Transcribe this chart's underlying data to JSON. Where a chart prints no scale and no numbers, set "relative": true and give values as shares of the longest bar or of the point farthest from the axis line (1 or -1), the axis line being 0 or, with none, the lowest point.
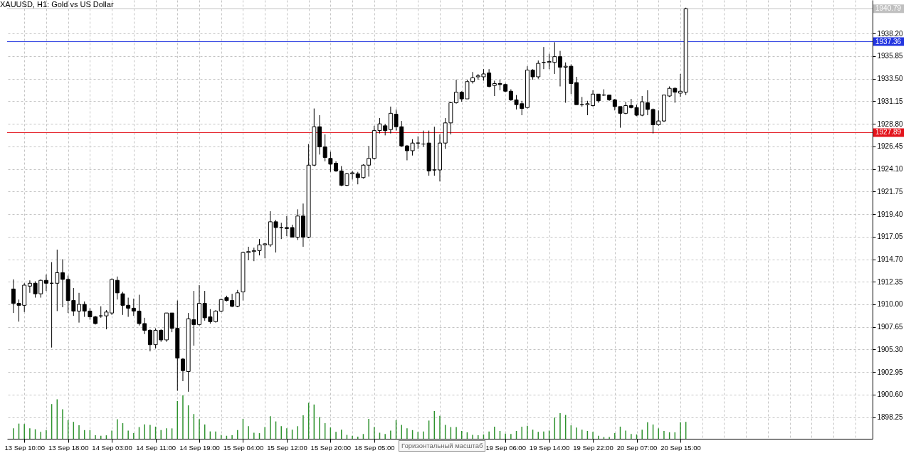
{
  "chart_data": [
    {
      "type": "candlestick",
      "title": "XAUUSD, H1: Gold vs US Dollar",
      "color": "#000000",
      "grid": true,
      "categories": [
        null,
        null,
        "13 Sep 10:00",
        null,
        null,
        null,
        null,
        null,
        null,
        null,
        "13 Sep 18:00",
        null,
        null,
        null,
        null,
        null,
        null,
        null,
        "14 Sep 03:00",
        null,
        null,
        null,
        null,
        null,
        null,
        null,
        "14 Sep 11:00",
        null,
        null,
        null,
        null,
        null,
        null,
        null,
        "14 Sep 19:00",
        null,
        null,
        null,
        null,
        null,
        null,
        null,
        "15 Sep 04:00",
        null,
        null,
        null,
        null,
        null,
        null,
        null,
        "15 Sep 12:00",
        null,
        null,
        null,
        null,
        null,
        null,
        null,
        "15 Sep 20:00",
        null,
        null,
        null,
        null,
        null,
        null,
        null,
        "18 Sep 05:00",
        null,
        null,
        null,
        null,
        null,
        null,
        null,
        null,
        null,
        null,
        null,
        null,
        null,
        null,
        null,
        null,
        null,
        null,
        null,
        null,
        null,
        null,
        null,
        "19 Sep 06:00",
        null,
        null,
        null,
        null,
        null,
        null,
        null,
        "19 Sep 14:00",
        null,
        null,
        null,
        null,
        null,
        null,
        null,
        "19 Sep 22:00",
        null,
        null,
        null,
        null,
        null,
        null,
        null,
        "20 Sep 07:00",
        null,
        null,
        null,
        null,
        null,
        null,
        null,
        "20 Sep 15:00",
        null,
        null,
        null,
        null,
        null,
        null,
        null,
        null,
        null,
        null,
        null,
        null,
        null,
        null,
        null,
        null,
        null,
        null,
        null,
        null,
        null,
        null,
        null,
        null,
        null,
        null,
        null,
        null,
        null,
        null,
        null,
        null,
        null,
        null
      ],
      "ohlc": [
        [
          1911.6,
          1912.6,
          1909.1,
          1910.1
        ],
        [
          1910.1,
          1910.5,
          1908.2,
          1909.9
        ],
        [
          1909.9,
          1912.2,
          1909.2,
          1912.0
        ],
        [
          1911.9,
          1912.5,
          1911.2,
          1912.2
        ],
        [
          1912.2,
          1912.4,
          1910.7,
          1911.1
        ],
        [
          1911.1,
          1912.6,
          1910.7,
          1912.5
        ],
        [
          1912.5,
          1913.1,
          1911.4,
          1912.2
        ],
        [
          1912.2,
          1914.4,
          1905.5,
          1912.2
        ],
        [
          1912.2,
          1915.7,
          1909.3,
          1913.3
        ],
        [
          1913.3,
          1914.7,
          1909.7,
          1912.6
        ],
        [
          1912.6,
          1913.0,
          1909.1,
          1910.4
        ],
        [
          1910.4,
          1911.7,
          1908.8,
          1909.3
        ],
        [
          1909.3,
          1911.2,
          1908.1,
          1910.0
        ],
        [
          1910.0,
          1910.3,
          1908.7,
          1909.3
        ],
        [
          1909.3,
          1909.6,
          1908.4,
          1908.7
        ],
        [
          1908.7,
          1908.8,
          1907.9,
          1908.0
        ],
        [
          1908.8,
          1909.8,
          1908.6,
          1908.8
        ],
        [
          1908.8,
          1909.4,
          1907.4,
          1909.2
        ],
        [
          1909.1,
          1912.7,
          1908.9,
          1912.6
        ],
        [
          1912.5,
          1912.9,
          1910.5,
          1911.2
        ],
        [
          1911.1,
          1911.3,
          1908.9,
          1909.9
        ],
        [
          1909.9,
          1910.7,
          1908.7,
          1909.6
        ],
        [
          1909.6,
          1910.6,
          1908.8,
          1909.3
        ],
        [
          1909.3,
          1911.0,
          1907.8,
          1908.0
        ],
        [
          1908.0,
          1908.6,
          1906.9,
          1907.3
        ],
        [
          1907.3,
          1907.4,
          1905.1,
          1905.8
        ],
        [
          1905.8,
          1907.5,
          1905.4,
          1907.3
        ],
        [
          1907.3,
          1907.4,
          1906.1,
          1906.3
        ],
        [
          1906.3,
          1909.1,
          1906.1,
          1909.1
        ],
        [
          1909.1,
          1909.1,
          1907.1,
          1907.5
        ],
        [
          1907.5,
          1910.4,
          1901.0,
          1904.4
        ],
        [
          1904.3,
          1904.4,
          1902.0,
          1903.1
        ],
        [
          1903.0,
          1909.1,
          1900.9,
          1908.5
        ],
        [
          1908.4,
          1911.4,
          1905.7,
          1907.9
        ],
        [
          1907.9,
          1912.0,
          1907.8,
          1910.1
        ],
        [
          1910.1,
          1911.4,
          1908.3,
          1908.6
        ],
        [
          1908.7,
          1909.5,
          1908.0,
          1908.2
        ],
        [
          1908.2,
          1909.4,
          1908.1,
          1909.3
        ],
        [
          1909.3,
          1910.6,
          1909.2,
          1910.5
        ],
        [
          1910.7,
          1910.9,
          1910.3,
          1910.4
        ],
        [
          1910.4,
          1911.1,
          1909.7,
          1909.8
        ],
        [
          1909.8,
          1911.5,
          1909.7,
          1911.2
        ],
        [
          1911.3,
          1915.5,
          1910.4,
          1915.4
        ],
        [
          1915.4,
          1916.0,
          1914.6,
          1915.5
        ],
        [
          1915.5,
          1915.9,
          1914.5,
          1915.6
        ],
        [
          1915.6,
          1916.8,
          1915.1,
          1916.2
        ],
        [
          1916.2,
          1916.4,
          1914.8,
          1916.3
        ],
        [
          1916.2,
          1919.7,
          1916.0,
          1918.6
        ],
        [
          1918.6,
          1918.8,
          1915.4,
          1918.0
        ],
        [
          1918.0,
          1918.5,
          1916.8,
          1918.0
        ],
        [
          1918.0,
          1919.2,
          1917.1,
          1917.9
        ],
        [
          1918.0,
          1918.3,
          1917.0,
          1917.0
        ],
        [
          1917.0,
          1919.9,
          1916.7,
          1919.2
        ],
        [
          1919.2,
          1920.5,
          1916.0,
          1917.0
        ],
        [
          1917.0,
          1926.7,
          1916.9,
          1924.5
        ],
        [
          1924.5,
          1930.4,
          1924.4,
          1928.5
        ],
        [
          1928.5,
          1929.7,
          1925.6,
          1926.4
        ],
        [
          1926.4,
          1927.7,
          1924.9,
          1925.3
        ],
        [
          1925.2,
          1925.9,
          1923.8,
          1924.6
        ],
        [
          1924.7,
          1924.9,
          1923.8,
          1923.9
        ],
        [
          1923.9,
          1924.4,
          1922.3,
          1922.4
        ],
        [
          1922.4,
          1923.7,
          1922.3,
          1923.6
        ],
        [
          1923.6,
          1923.9,
          1923.0,
          1923.7
        ],
        [
          1923.6,
          1923.8,
          1922.5,
          1923.2
        ],
        [
          1923.2,
          1924.6,
          1923.1,
          1924.5
        ],
        [
          1924.5,
          1926.5,
          1923.3,
          1925.2
        ],
        [
          1925.2,
          1928.6,
          1925.1,
          1928.1
        ],
        [
          1928.1,
          1929.4,
          1927.8,
          1928.8
        ],
        [
          1928.6,
          1928.8,
          1927.6,
          1928.1
        ],
        [
          1928.2,
          1930.6,
          1927.8,
          1929.9
        ],
        [
          1929.8,
          1930.3,
          1928.1,
          1928.5
        ],
        [
          1928.5,
          1929.1,
          1926.4,
          1926.5
        ],
        [
          1926.5,
          1926.6,
          1925.0,
          1926.0
        ],
        [
          1926.0,
          1927.2,
          1925.5,
          1926.8
        ],
        [
          1926.8,
          1927.5,
          1926.2,
          1926.8
        ],
        [
          1926.7,
          1928.1,
          1926.4,
          1926.7
        ],
        [
          1926.8,
          1928.1,
          1923.4,
          1923.9
        ],
        [
          1924.0,
          1928.5,
          1923.4,
          1924.0
        ],
        [
          1924.0,
          1927.7,
          1922.8,
          1926.8
        ],
        [
          1926.8,
          1929.4,
          1926.2,
          1928.9
        ],
        [
          1928.9,
          1931.1,
          1927.7,
          1931.0
        ],
        [
          1931.0,
          1933.4,
          1930.9,
          1932.1
        ],
        [
          1932.1,
          1932.2,
          1931.1,
          1931.4
        ],
        [
          1931.4,
          1933.4,
          1931.4,
          1933.2
        ],
        [
          1933.2,
          1934.2,
          1933.0,
          1933.6
        ],
        [
          1933.7,
          1934.0,
          1933.4,
          1933.8
        ],
        [
          1933.7,
          1934.5,
          1933.3,
          1934.0
        ],
        [
          1934.1,
          1934.5,
          1932.6,
          1932.7
        ],
        [
          1932.8,
          1933.3,
          1931.7,
          1933.0
        ],
        [
          1933.0,
          1933.4,
          1932.3,
          1932.9
        ],
        [
          1932.9,
          1933.0,
          1932.1,
          1932.2
        ],
        [
          1932.2,
          1932.4,
          1931.2,
          1931.3
        ],
        [
          1931.3,
          1931.8,
          1930.3,
          1930.8
        ],
        [
          1930.9,
          1931.2,
          1929.7,
          1930.4
        ],
        [
          1930.5,
          1934.8,
          1930.4,
          1934.4
        ],
        [
          1934.4,
          1934.5,
          1933.4,
          1933.7
        ],
        [
          1933.7,
          1935.4,
          1933.5,
          1935.1
        ],
        [
          1935.2,
          1936.8,
          1934.5,
          1935.2
        ],
        [
          1935.2,
          1936.1,
          1934.5,
          1935.3
        ],
        [
          1935.2,
          1937.3,
          1934.0,
          1935.8
        ],
        [
          1935.8,
          1936.4,
          1932.7,
          1934.7
        ],
        [
          1934.7,
          1935.2,
          1931.0,
          1934.8
        ],
        [
          1934.8,
          1935.0,
          1931.9,
          1933.0
        ],
        [
          1933.1,
          1933.7,
          1930.8,
          1930.8
        ],
        [
          1930.8,
          1931.6,
          1930.6,
          1930.8
        ],
        [
          1930.8,
          1931.2,
          1929.7,
          1930.9
        ],
        [
          1930.7,
          1932.3,
          1930.6,
          1931.9
        ],
        [
          1931.9,
          1931.9,
          1931.0,
          1931.2
        ],
        [
          1931.8,
          1932.4,
          1931.7,
          1931.8
        ],
        [
          1931.8,
          1931.8,
          1931.2,
          1931.3
        ],
        [
          1931.3,
          1931.4,
          1930.2,
          1930.6
        ],
        [
          1930.6,
          1930.6,
          1928.4,
          1929.9
        ],
        [
          1929.9,
          1931.1,
          1929.8,
          1930.7
        ],
        [
          1930.7,
          1931.4,
          1930.4,
          1930.5
        ],
        [
          1930.5,
          1930.8,
          1929.6,
          1929.7
        ],
        [
          1929.7,
          1931.7,
          1929.6,
          1931.1
        ],
        [
          1931.0,
          1932.3,
          1929.7,
          1930.3
        ],
        [
          1930.3,
          1930.4,
          1927.8,
          1928.7
        ],
        [
          1928.7,
          1930.2,
          1928.6,
          1929.1
        ],
        [
          1929.1,
          1931.8,
          1929.0,
          1931.8
        ],
        [
          1931.7,
          1932.7,
          1931.6,
          1932.5
        ],
        [
          1932.5,
          1932.6,
          1931.0,
          1932.1
        ],
        [
          1932.0,
          1934.0,
          1931.6,
          1932.2
        ],
        [
          1932.1,
          1940.9,
          1931.8,
          1940.79
        ],
        null,
        null,
        null,
        null,
        null,
        null,
        null,
        null,
        null,
        null,
        null,
        null,
        null,
        null,
        null,
        null,
        null,
        null,
        null,
        null,
        null,
        null,
        null,
        null,
        null,
        null,
        null,
        null,
        null,
        null,
        null,
        null,
        null
      ],
      "ylim": [
        1896.0,
        1941.7
      ],
      "yticks": [
        {
          "value": 1898.25,
          "label": "1898.25"
        },
        {
          "value": 1900.6,
          "label": "1900.60"
        },
        {
          "value": 1902.95,
          "label": "1902.95"
        },
        {
          "value": 1905.3,
          "label": "1905.30"
        },
        {
          "value": 1907.65,
          "label": "1907.65"
        },
        {
          "value": 1910,
          "label": "1910.00"
        },
        {
          "value": 1912.35,
          "label": "1912.35"
        },
        {
          "value": 1914.7,
          "label": "1914.70"
        },
        {
          "value": 1917.05,
          "label": "1917.05"
        },
        {
          "value": 1919.4,
          "label": "1919.40"
        },
        {
          "value": 1921.75,
          "label": "1921.75"
        },
        {
          "value": 1924.1,
          "label": "1924.10"
        },
        {
          "value": 1926.45,
          "label": "1926.45"
        },
        {
          "value": 1928.8,
          "label": "1928.80"
        },
        {
          "value": 1931.15,
          "label": "1931.15"
        },
        {
          "value": 1933.5,
          "label": "1933.50"
        },
        {
          "value": 1935.85,
          "label": "1935.85"
        },
        {
          "value": 1938.2,
          "label": "1938.20"
        }
      ],
      "ref_lines": [
        {
          "axis": "y",
          "value": 1940.79,
          "label": "1940.79",
          "color": "#c0c0c0"
        },
        {
          "axis": "y",
          "value": 1937.36,
          "label": "1937.36",
          "color": "#2436e0"
        },
        {
          "axis": "y",
          "value": 1927.89,
          "label": "1927.89",
          "color": "#e3141c"
        }
      ],
      "annotations": [
        "Горизонтальный масштаб"
      ]
    },
    {
      "type": "bar",
      "relative": true,
      "color": "#2e922e",
      "categories": [
        null,
        null,
        null,
        null,
        null,
        null,
        null,
        null,
        null,
        null,
        null,
        null,
        null,
        null,
        null,
        null,
        null,
        null,
        null,
        null,
        null,
        null,
        null,
        null,
        null,
        null,
        null,
        null,
        null,
        null,
        null,
        null,
        null,
        null,
        null,
        null,
        null,
        null,
        null,
        null,
        null,
        null,
        null,
        null,
        null,
        null,
        null,
        null,
        null,
        null,
        null,
        null,
        null,
        null,
        null,
        null,
        null,
        null,
        null,
        null,
        null,
        null,
        null,
        null,
        null,
        null,
        null,
        null,
        null,
        null,
        null,
        null,
        null,
        null,
        null,
        null,
        null,
        null,
        null,
        null,
        null,
        null,
        null,
        null,
        null,
        null,
        null,
        null,
        null,
        null,
        null,
        null,
        null,
        null,
        null,
        null,
        null,
        null,
        null,
        null,
        null,
        null,
        null,
        null,
        null,
        null,
        null,
        null,
        null,
        null,
        null,
        null,
        null,
        null,
        null,
        null,
        null,
        null,
        null,
        null,
        null,
        null,
        null,
        null,
        null,
        null,
        null,
        null,
        null,
        null,
        null,
        null,
        null,
        null,
        null,
        null,
        null,
        null,
        null,
        null,
        null,
        null,
        null,
        null,
        null,
        null,
        null,
        null,
        null,
        null,
        null,
        null,
        null,
        null,
        null,
        null,
        null
      ],
      "values": [
        0.24,
        0.35,
        0.34,
        0.24,
        0.22,
        0.16,
        0.2,
        0.8,
        0.91,
        0.68,
        0.43,
        0.39,
        0.31,
        0.2,
        0.2,
        0.08,
        0.07,
        0.08,
        0.19,
        0.45,
        0.36,
        0.19,
        0.13,
        0.27,
        0.33,
        0.32,
        0.28,
        0.2,
        0.24,
        0.24,
        0.87,
        1,
        0.77,
        0.57,
        0.45,
        0.33,
        0.17,
        0.17,
        0.09,
        0.07,
        0.08,
        0.2,
        0.46,
        0.29,
        0.14,
        0.13,
        0.27,
        0.52,
        0.4,
        0.29,
        0.24,
        0.21,
        0.29,
        0.54,
        0.83,
        0.79,
        0.5,
        0.36,
        0.26,
        0.16,
        0.21,
        0.09,
        0.07,
        0.05,
        0.11,
        0.46,
        0.27,
        0.14,
        0.11,
        0.19,
        0.43,
        0.32,
        0.24,
        0.2,
        0.16,
        0.17,
        0.42,
        0.64,
        0.53,
        0.32,
        0.27,
        0.27,
        0.18,
        0.15,
        0.09,
        0.08,
        0.1,
        0.17,
        0.28,
        0.18,
        0.12,
        0.11,
        0.18,
        0.28,
        0.3,
        0.21,
        0.16,
        0.17,
        0.19,
        0.49,
        0.59,
        0.55,
        0.31,
        0.26,
        0.21,
        0.18,
        0.16,
        0.07,
        0.04,
        0.04,
        0.13,
        0.28,
        0.19,
        0.11,
        0.1,
        0.21,
        0.38,
        0.33,
        0.24,
        0.18,
        0.15,
        0.15,
        0.38,
        0.39,
        null,
        null,
        null,
        null,
        null,
        null,
        null,
        null,
        null,
        null,
        null,
        null,
        null,
        null,
        null,
        null,
        null,
        null,
        null,
        null,
        null,
        null,
        null,
        null,
        null,
        null,
        null,
        null,
        null,
        null,
        null,
        null,
        null
      ]
    }
  ]
}
